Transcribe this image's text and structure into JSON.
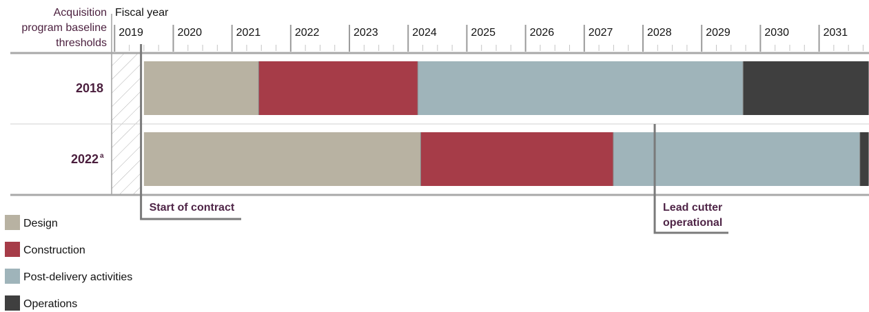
{
  "chart_data": {
    "type": "timeline",
    "title": "",
    "row_header": [
      "Acquisition",
      "program baseline",
      "thresholds"
    ],
    "axis_label": "Fiscal year",
    "years": [
      "2019",
      "2020",
      "2021",
      "2022",
      "2023",
      "2024",
      "2025",
      "2026",
      "2027",
      "2028",
      "2029",
      "2030",
      "2031"
    ],
    "x_range": [
      2018.95,
      2031.85
    ],
    "phases": [
      "Design",
      "Construction",
      "Post-delivery activities",
      "Operations"
    ],
    "rows": [
      {
        "label": "2018",
        "sup": "",
        "segments": [
          {
            "phase": "Design",
            "start": 2019.5,
            "end": 2021.46
          },
          {
            "phase": "Construction",
            "start": 2021.46,
            "end": 2024.17
          },
          {
            "phase": "Post-delivery activities",
            "start": 2024.17,
            "end": 2029.71
          },
          {
            "phase": "Operations",
            "start": 2029.71,
            "end": 2031.85
          }
        ]
      },
      {
        "label": "2022",
        "sup": "a",
        "segments": [
          {
            "phase": "Design",
            "start": 2019.5,
            "end": 2024.22
          },
          {
            "phase": "Construction",
            "start": 2024.22,
            "end": 2027.5
          },
          {
            "phase": "Post-delivery activities",
            "start": 2027.5,
            "end": 2031.7
          },
          {
            "phase": "Operations",
            "start": 2031.7,
            "end": 2031.85
          }
        ]
      }
    ],
    "annotations": [
      {
        "lines": [
          "Start of contract"
        ],
        "x": 2019.45
      },
      {
        "lines": [
          "Lead cutter",
          "operational"
        ],
        "x": 2028.2
      }
    ],
    "legend": [
      {
        "label": "Design",
        "color": "#b8b2a2"
      },
      {
        "label": "Construction",
        "color": "#a63c48"
      },
      {
        "label": "Post-delivery activities",
        "color": "#9fb4ba"
      },
      {
        "label": "Operations",
        "color": "#3f3f3f"
      }
    ],
    "colors": {
      "Design": "#b8b2a2",
      "Construction": "#a63c48",
      "Post-delivery activities": "#9fb4ba",
      "Operations": "#3f3f3f",
      "label": "#4a1e3d",
      "annotation": "#4f2547",
      "leader": "#7a7a7a"
    },
    "legend_placement": "bottom-left"
  }
}
